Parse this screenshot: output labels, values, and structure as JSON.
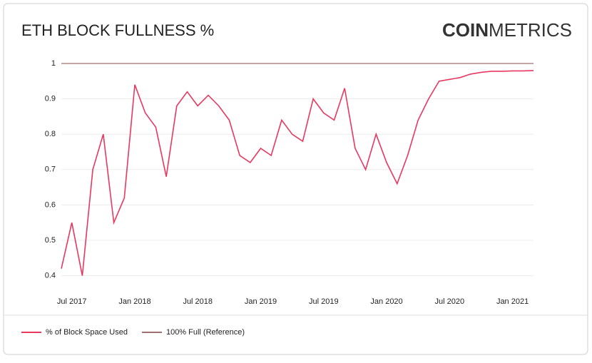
{
  "chart_data": {
    "type": "line",
    "title": "ETH BLOCK FULLNESS %",
    "logo": {
      "bold": "COIN",
      "light": "METRICS"
    },
    "x": [
      "2017-06",
      "2017-07",
      "2017-08",
      "2017-09",
      "2017-10",
      "2017-11",
      "2017-12",
      "2018-01",
      "2018-02",
      "2018-03",
      "2018-04",
      "2018-05",
      "2018-06",
      "2018-07",
      "2018-08",
      "2018-09",
      "2018-10",
      "2018-11",
      "2018-12",
      "2019-01",
      "2019-02",
      "2019-03",
      "2019-04",
      "2019-05",
      "2019-06",
      "2019-07",
      "2019-08",
      "2019-09",
      "2019-10",
      "2019-11",
      "2019-12",
      "2020-01",
      "2020-02",
      "2020-03",
      "2020-04",
      "2020-05",
      "2020-06",
      "2020-07",
      "2020-08",
      "2020-09",
      "2020-10",
      "2020-11",
      "2020-12",
      "2021-01",
      "2021-02",
      "2021-03"
    ],
    "series": [
      {
        "name": "% of Block Space Used",
        "color": "#e8385f",
        "values": [
          0.42,
          0.55,
          0.4,
          0.7,
          0.8,
          0.55,
          0.62,
          0.94,
          0.86,
          0.82,
          0.68,
          0.88,
          0.92,
          0.88,
          0.91,
          0.88,
          0.84,
          0.74,
          0.72,
          0.76,
          0.74,
          0.84,
          0.8,
          0.78,
          0.9,
          0.86,
          0.84,
          0.93,
          0.76,
          0.7,
          0.8,
          0.72,
          0.66,
          0.74,
          0.84,
          0.9,
          0.95,
          0.955,
          0.96,
          0.97,
          0.975,
          0.978,
          0.978,
          0.979,
          0.979,
          0.98
        ]
      },
      {
        "name": "100% Full (Reference)",
        "color": "#a07070",
        "values": [
          1,
          1,
          1,
          1,
          1,
          1,
          1,
          1,
          1,
          1,
          1,
          1,
          1,
          1,
          1,
          1,
          1,
          1,
          1,
          1,
          1,
          1,
          1,
          1,
          1,
          1,
          1,
          1,
          1,
          1,
          1,
          1,
          1,
          1,
          1,
          1,
          1,
          1,
          1,
          1,
          1,
          1,
          1,
          1,
          1,
          1
        ]
      }
    ],
    "ylim": [
      0.375,
      1.0
    ],
    "yticks": [
      0.4,
      0.5,
      0.6,
      0.7,
      0.8,
      0.9,
      1
    ],
    "xticks": [
      {
        "value": "2017-07",
        "label": "Jul 2017"
      },
      {
        "value": "2018-01",
        "label": "Jan 2018"
      },
      {
        "value": "2018-07",
        "label": "Jul 2018"
      },
      {
        "value": "2019-01",
        "label": "Jan 2019"
      },
      {
        "value": "2019-07",
        "label": "Jul 2019"
      },
      {
        "value": "2020-01",
        "label": "Jan 2020"
      },
      {
        "value": "2020-07",
        "label": "Jul 2020"
      },
      {
        "value": "2021-01",
        "label": "Jan 2021"
      }
    ],
    "grid": true
  }
}
